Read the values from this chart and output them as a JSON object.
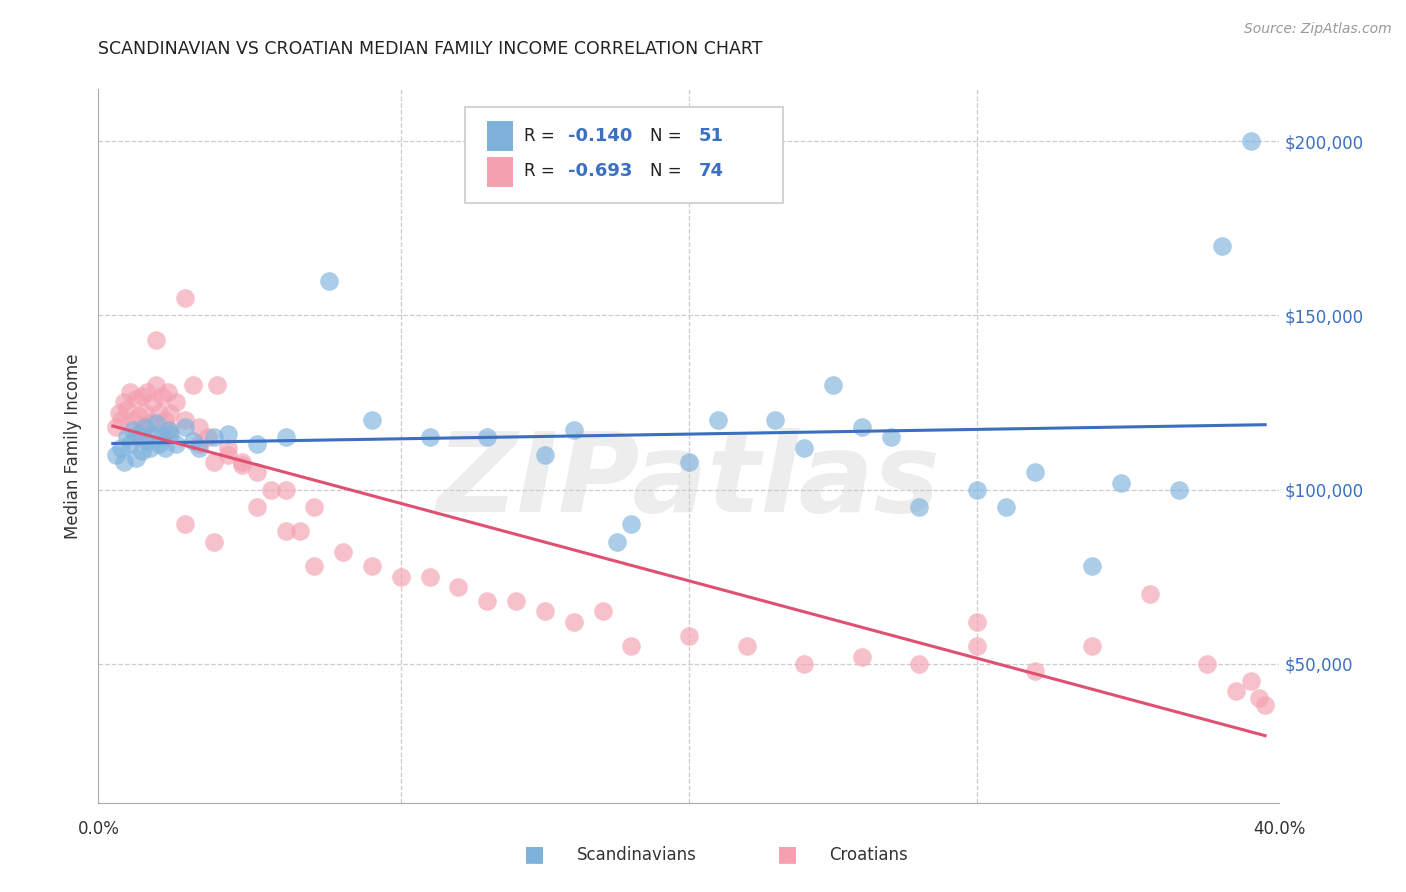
{
  "title": "SCANDINAVIAN VS CROATIAN MEDIAN FAMILY INCOME CORRELATION CHART",
  "source": "Source: ZipAtlas.com",
  "ylabel": "Median Family Income",
  "ytick_labels": [
    "$50,000",
    "$100,000",
    "$150,000",
    "$200,000"
  ],
  "ytick_values": [
    50000,
    100000,
    150000,
    200000
  ],
  "ylim": [
    10000,
    215000
  ],
  "xlim": [
    -0.005,
    0.405
  ],
  "watermark": "ZIPatlas",
  "blue_color": "#7EB2DD",
  "pink_color": "#F4A0B0",
  "blue_line_color": "#3B6FBF",
  "pink_line_color": "#E05070",
  "scandinavians_label": "Scandinavians",
  "croatians_label": "Croatians",
  "scand_x": [
    0.001,
    0.003,
    0.004,
    0.005,
    0.006,
    0.007,
    0.008,
    0.009,
    0.01,
    0.011,
    0.012,
    0.013,
    0.014,
    0.015,
    0.016,
    0.017,
    0.018,
    0.019,
    0.02,
    0.022,
    0.025,
    0.028,
    0.03,
    0.035,
    0.04,
    0.05,
    0.06,
    0.075,
    0.09,
    0.11,
    0.13,
    0.16,
    0.18,
    0.21,
    0.23,
    0.25,
    0.28,
    0.3,
    0.32,
    0.35,
    0.37,
    0.385,
    0.395,
    0.175,
    0.27,
    0.31,
    0.15,
    0.2,
    0.24,
    0.26,
    0.34
  ],
  "scand_y": [
    110000,
    112000,
    108000,
    115000,
    113000,
    117000,
    109000,
    116000,
    111000,
    118000,
    114000,
    112000,
    116000,
    119000,
    113000,
    115000,
    112000,
    117000,
    116000,
    113000,
    118000,
    114000,
    112000,
    115000,
    116000,
    113000,
    115000,
    160000,
    120000,
    115000,
    115000,
    117000,
    90000,
    120000,
    120000,
    130000,
    95000,
    100000,
    105000,
    102000,
    100000,
    170000,
    200000,
    85000,
    115000,
    95000,
    110000,
    108000,
    112000,
    118000,
    78000
  ],
  "croat_x": [
    0.001,
    0.002,
    0.003,
    0.004,
    0.005,
    0.006,
    0.007,
    0.008,
    0.009,
    0.01,
    0.011,
    0.012,
    0.013,
    0.014,
    0.015,
    0.016,
    0.017,
    0.018,
    0.019,
    0.02,
    0.022,
    0.025,
    0.028,
    0.03,
    0.033,
    0.036,
    0.04,
    0.045,
    0.05,
    0.055,
    0.06,
    0.065,
    0.07,
    0.08,
    0.09,
    0.1,
    0.11,
    0.12,
    0.13,
    0.14,
    0.15,
    0.16,
    0.17,
    0.18,
    0.2,
    0.22,
    0.24,
    0.26,
    0.28,
    0.3,
    0.32,
    0.34,
    0.36,
    0.38,
    0.39,
    0.395,
    0.398,
    0.4,
    0.008,
    0.01,
    0.015,
    0.02,
    0.025,
    0.03,
    0.035,
    0.04,
    0.045,
    0.05,
    0.06,
    0.07,
    0.025,
    0.035,
    0.3
  ],
  "croat_y": [
    118000,
    122000,
    120000,
    125000,
    123000,
    128000,
    120000,
    126000,
    121000,
    127000,
    122000,
    128000,
    119000,
    125000,
    130000,
    122000,
    127000,
    120000,
    128000,
    122000,
    125000,
    155000,
    130000,
    118000,
    115000,
    130000,
    112000,
    107000,
    105000,
    100000,
    100000,
    88000,
    95000,
    82000,
    78000,
    75000,
    75000,
    72000,
    68000,
    68000,
    65000,
    62000,
    65000,
    55000,
    58000,
    55000,
    50000,
    52000,
    50000,
    62000,
    48000,
    55000,
    70000,
    50000,
    42000,
    45000,
    40000,
    38000,
    115000,
    117000,
    143000,
    117000,
    120000,
    113000,
    108000,
    110000,
    108000,
    95000,
    88000,
    78000,
    90000,
    85000,
    55000
  ]
}
